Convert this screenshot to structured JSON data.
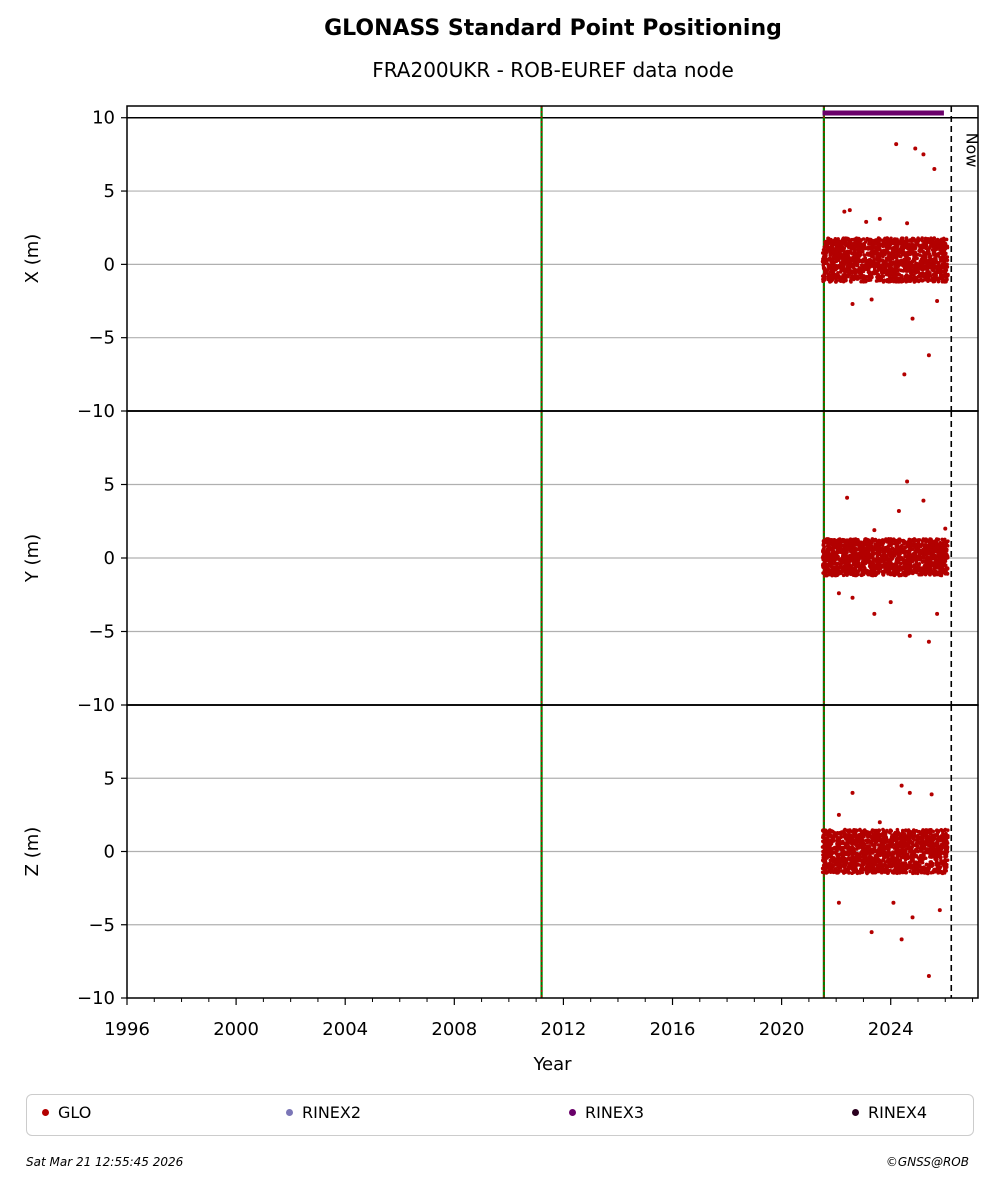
{
  "title": "GLONASS Standard Point Positioning",
  "subtitle": "FRA200UKR - ROB-EUREF data node",
  "footer_left": "Sat Mar 21 12:55:45 2026",
  "footer_right": "©GNSS@ROB",
  "now_label": "Now",
  "colors": {
    "glo": "#b30000",
    "rinex2": "#7b76b7",
    "rinex3": "#6a006a",
    "rinex4": "#2a001e",
    "event_green": "#008000",
    "event_red": "#cc0000",
    "grid": "#b0b0b0"
  },
  "legend": [
    {
      "label": "GLO",
      "color": "#b30000"
    },
    {
      "label": "RINEX2",
      "color": "#7b76b7"
    },
    {
      "label": "RINEX3",
      "color": "#6a006a"
    },
    {
      "label": "RINEX4",
      "color": "#2a001e"
    }
  ],
  "chart_data": {
    "type": "scatter",
    "xlabel": "Year",
    "xlim": [
      1996,
      2027.2
    ],
    "x_ticks": [
      "1996",
      "2000",
      "2004",
      "2008",
      "2012",
      "2016",
      "2020",
      "2024"
    ],
    "grid": "horizontal",
    "event_lines_year": [
      2011.2,
      2021.55
    ],
    "now_year": 2026.22,
    "rinex3_coverage_years": [
      2021.5,
      2025.95
    ],
    "data_span_years": [
      2021.5,
      2026.1
    ],
    "panels": [
      {
        "ylabel": "X (m)",
        "ylim": [
          -10,
          10.8
        ],
        "y_ticks": [
          "−10",
          "−5",
          "0",
          "5",
          "10"
        ],
        "y_tick_values": [
          -10,
          -5,
          0,
          5,
          10
        ],
        "series": [
          {
            "name": "GLO",
            "core_band": [
              -1.2,
              1.8
            ],
            "outliers": [
              [
                2022.3,
                3.6
              ],
              [
                2022.5,
                3.7
              ],
              [
                2023.1,
                2.9
              ],
              [
                2023.6,
                3.1
              ],
              [
                2024.2,
                8.2
              ],
              [
                2024.6,
                2.8
              ],
              [
                2024.9,
                7.9
              ],
              [
                2025.2,
                7.5
              ],
              [
                2025.6,
                6.5
              ],
              [
                2022.6,
                -2.7
              ],
              [
                2023.3,
                -2.4
              ],
              [
                2024.5,
                -7.5
              ],
              [
                2024.8,
                -3.7
              ],
              [
                2025.4,
                -6.2
              ],
              [
                2025.7,
                -2.5
              ]
            ]
          }
        ]
      },
      {
        "ylabel": "Y (m)",
        "ylim": [
          -10,
          10
        ],
        "y_ticks": [
          "−10",
          "−5",
          "0",
          "5"
        ],
        "y_tick_values": [
          -10,
          -5,
          0,
          5
        ],
        "series": [
          {
            "name": "GLO",
            "core_band": [
              -1.2,
              1.3
            ],
            "outliers": [
              [
                2022.4,
                4.1
              ],
              [
                2023.4,
                1.9
              ],
              [
                2024.3,
                3.2
              ],
              [
                2024.6,
                5.2
              ],
              [
                2025.2,
                3.9
              ],
              [
                2026.0,
                2.0
              ],
              [
                2022.1,
                -2.4
              ],
              [
                2022.6,
                -2.7
              ],
              [
                2023.4,
                -3.8
              ],
              [
                2024.0,
                -3.0
              ],
              [
                2024.7,
                -5.3
              ],
              [
                2025.4,
                -5.7
              ],
              [
                2025.7,
                -3.8
              ]
            ]
          }
        ]
      },
      {
        "ylabel": "Z (m)",
        "ylim": [
          -10,
          10
        ],
        "y_ticks": [
          "−10",
          "−5",
          "0",
          "5"
        ],
        "y_tick_values": [
          -10,
          -5,
          0,
          5
        ],
        "series": [
          {
            "name": "GLO",
            "core_band": [
              -1.5,
              1.5
            ],
            "outliers": [
              [
                2022.1,
                2.5
              ],
              [
                2022.6,
                4.0
              ],
              [
                2023.6,
                2.0
              ],
              [
                2024.4,
                4.5
              ],
              [
                2024.7,
                4.0
              ],
              [
                2025.5,
                3.9
              ],
              [
                2022.1,
                -3.5
              ],
              [
                2023.3,
                -5.5
              ],
              [
                2024.1,
                -3.5
              ],
              [
                2024.4,
                -6.0
              ],
              [
                2024.8,
                -4.5
              ],
              [
                2025.4,
                -8.5
              ],
              [
                2025.8,
                -4.0
              ]
            ]
          }
        ]
      }
    ]
  }
}
